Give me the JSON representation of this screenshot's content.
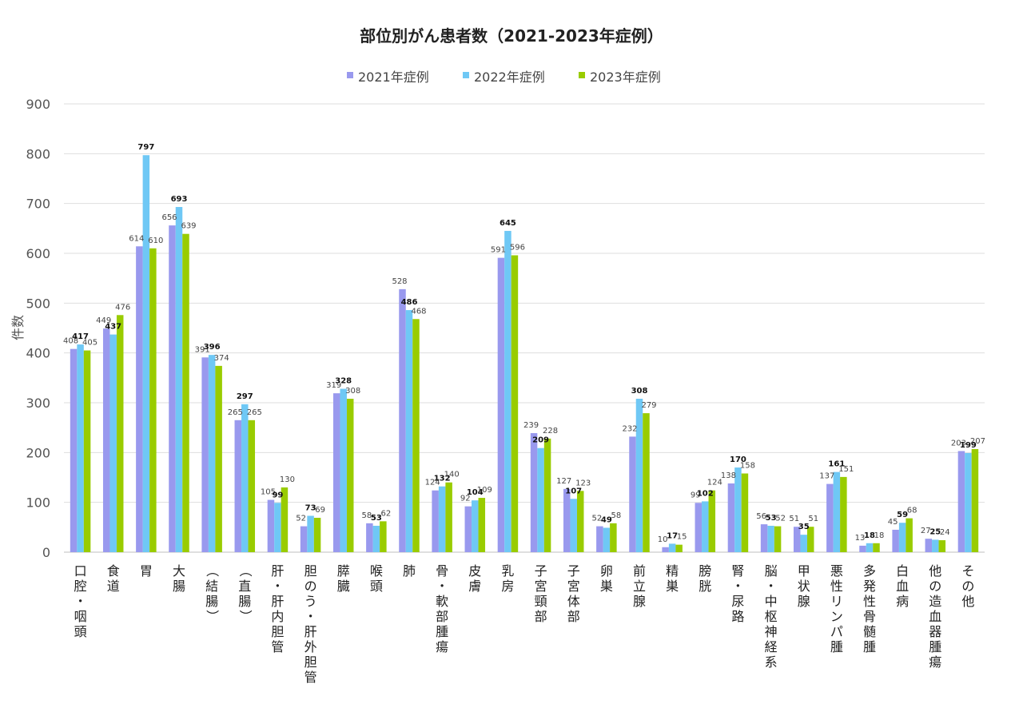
{
  "chart_data": {
    "type": "bar",
    "title": "部位別がん患者数（2021-2023年症例）",
    "ylabel": "件数",
    "xlabel": "",
    "ylim": [
      0,
      900
    ],
    "yticks": [
      0,
      100,
      200,
      300,
      400,
      500,
      600,
      700,
      800,
      900
    ],
    "grid": true,
    "legend_position": "top-center",
    "categories": [
      "口腔・咽頭",
      "食道",
      "胃",
      "大腸",
      "（結腸）",
      "（直腸）",
      "肝・肝内胆管",
      "胆のう・肝外胆管",
      "膵臓",
      "喉頭",
      "肺",
      "骨・軟部腫瘍",
      "皮膚",
      "乳房",
      "子宮頸部",
      "子宮体部",
      "卵巣",
      "前立腺",
      "精巣",
      "膀胱",
      "腎・尿路",
      "脳・中枢神経系",
      "甲状腺",
      "悪性リンパ腫",
      "多発性骨髄腫",
      "白血病",
      "他の造血器腫瘍",
      "その他"
    ],
    "series": [
      {
        "name": "2021年症例",
        "color": "#9999ee",
        "values": [
          408,
          449,
          614,
          656,
          391,
          265,
          105,
          52,
          319,
          58,
          528,
          124,
          92,
          591,
          239,
          127,
          52,
          232,
          10,
          99,
          138,
          56,
          51,
          137,
          13,
          45,
          27,
          203
        ]
      },
      {
        "name": "2022年症例",
        "color": "#6fc8f5",
        "values": [
          417,
          437,
          797,
          693,
          396,
          297,
          99,
          73,
          328,
          53,
          486,
          132,
          104,
          645,
          209,
          107,
          49,
          308,
          17,
          102,
          170,
          53,
          35,
          161,
          18,
          59,
          25,
          199
        ]
      },
      {
        "name": "2023年症例",
        "color": "#99cc00",
        "values": [
          405,
          476,
          610,
          639,
          374,
          265,
          130,
          69,
          308,
          62,
          468,
          140,
          109,
          596,
          228,
          123,
          58,
          279,
          15,
          124,
          158,
          52,
          51,
          151,
          18,
          68,
          24,
          207
        ]
      }
    ]
  }
}
